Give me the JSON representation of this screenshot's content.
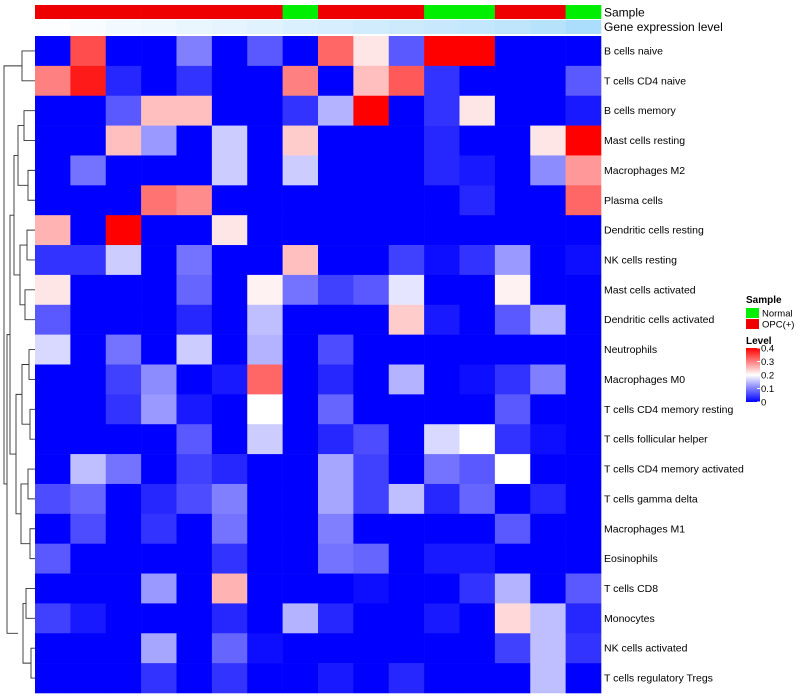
{
  "chart_data": {
    "type": "heatmap",
    "annotation_labels": {
      "sample": "Sample",
      "gene": "Gene expression level"
    },
    "sample_colors": {
      "Normal": "#00ee00",
      "OPC(+)": "#ee0000"
    },
    "column_samples": [
      "OPC(+)",
      "OPC(+)",
      "OPC(+)",
      "OPC(+)",
      "OPC(+)",
      "OPC(+)",
      "OPC(+)",
      "Normal",
      "OPC(+)",
      "OPC(+)",
      "OPC(+)",
      "Normal",
      "Normal",
      "OPC(+)",
      "OPC(+)",
      "Normal"
    ],
    "column_gene_level": [
      0.02,
      0.06,
      0.1,
      0.14,
      0.18,
      0.22,
      0.26,
      0.3,
      0.34,
      0.38,
      0.42,
      0.46,
      0.5,
      0.54,
      0.6,
      0.7
    ],
    "gene_level_colors": {
      "low": "#ffffff",
      "high": "#87cefa"
    },
    "rows": [
      "B cells naive",
      "T cells CD4 naive",
      "B cells memory",
      "Mast cells resting",
      "Macrophages M2",
      "Plasma cells",
      "Dendritic cells resting",
      "NK cells resting",
      "Mast cells activated",
      "Dendritic cells activated",
      "Neutrophils",
      "Macrophages M0",
      "T cells CD4 memory resting",
      "T cells follicular helper",
      "T cells CD4 memory activated",
      "T cells gamma delta",
      "Macrophages M1",
      "Eosinophils",
      "T cells CD8",
      "Monocytes",
      "NK cells activated",
      "T cells regulatory  Tregs"
    ],
    "values": [
      [
        0,
        0.34,
        0,
        0,
        0.1,
        0,
        0.07,
        0,
        0.32,
        0.22,
        0.07,
        0.4,
        0.4,
        0,
        0,
        0
      ],
      [
        0.3,
        0.38,
        0.03,
        0,
        0.04,
        0,
        0,
        0.3,
        0,
        0.25,
        0.33,
        0.04,
        0,
        0,
        0,
        0.07
      ],
      [
        0,
        0,
        0.07,
        0.25,
        0.25,
        0,
        0,
        0.04,
        0.14,
        0.4,
        0,
        0.04,
        0.22,
        0,
        0,
        0.02
      ],
      [
        0,
        0,
        0.25,
        0.12,
        0,
        0.16,
        0,
        0.24,
        0,
        0,
        0,
        0.03,
        0,
        0,
        0.22,
        0.4
      ],
      [
        0,
        0.09,
        0,
        0,
        0,
        0.16,
        0,
        0.16,
        0,
        0,
        0,
        0.03,
        0.02,
        0,
        0.11,
        0.28
      ],
      [
        0,
        0,
        0,
        0.31,
        0.29,
        0,
        0,
        0,
        0,
        0,
        0,
        0,
        0.03,
        0,
        0,
        0.32
      ],
      [
        0.26,
        0,
        0.4,
        0,
        0,
        0.22,
        0,
        0,
        0,
        0,
        0,
        0,
        0,
        0,
        0,
        0
      ],
      [
        0.04,
        0.04,
        0.16,
        0,
        0.09,
        0,
        0,
        0.25,
        0,
        0,
        0.05,
        0.01,
        0.04,
        0.12,
        0,
        0.01
      ],
      [
        0.22,
        0,
        0,
        0,
        0.08,
        0,
        0.21,
        0.09,
        0.05,
        0.07,
        0.18,
        0,
        0,
        0.21,
        0,
        0
      ],
      [
        0.07,
        0,
        0,
        0,
        0.03,
        0,
        0.15,
        0,
        0,
        0,
        0.24,
        0.02,
        0,
        0.07,
        0.14,
        0
      ],
      [
        0.17,
        0,
        0.09,
        0,
        0.16,
        0,
        0.14,
        0,
        0.06,
        0,
        0,
        0,
        0,
        0,
        0,
        0
      ],
      [
        0,
        0,
        0.05,
        0.11,
        0,
        0.02,
        0.32,
        0,
        0.03,
        0,
        0.14,
        0,
        0.01,
        0.04,
        0.1,
        0
      ],
      [
        0,
        0,
        0.04,
        0.12,
        0.02,
        0,
        0.2,
        0,
        0.08,
        0,
        0,
        0,
        0,
        0.07,
        0,
        0
      ],
      [
        0,
        0,
        0,
        0,
        0.07,
        0,
        0.16,
        0,
        0.03,
        0.06,
        0,
        0.17,
        0.2,
        0.04,
        0.01,
        0
      ],
      [
        0,
        0.15,
        0.09,
        0,
        0.05,
        0.03,
        0,
        0,
        0.13,
        0.05,
        0,
        0.09,
        0.07,
        0.2,
        0,
        0
      ],
      [
        0.06,
        0.08,
        0,
        0.03,
        0.06,
        0.1,
        0,
        0,
        0.13,
        0.05,
        0.15,
        0.03,
        0.08,
        0,
        0.03,
        0
      ],
      [
        0,
        0.06,
        0,
        0.04,
        0,
        0.09,
        0,
        0,
        0.1,
        0,
        0,
        0,
        0,
        0.07,
        0,
        0
      ],
      [
        0.07,
        0,
        0,
        0,
        0,
        0.04,
        0,
        0,
        0.09,
        0.08,
        0,
        0.02,
        0.02,
        0,
        0,
        0
      ],
      [
        0,
        0,
        0,
        0.12,
        0,
        0.26,
        0,
        0,
        0,
        0.01,
        0,
        0,
        0.04,
        0.14,
        0,
        0.07
      ],
      [
        0.05,
        0.02,
        0,
        0,
        0,
        0.03,
        0,
        0.14,
        0.03,
        0,
        0,
        0.02,
        0,
        0.23,
        0.15,
        0.03
      ],
      [
        0,
        0,
        0,
        0.13,
        0,
        0.08,
        0.01,
        0,
        0,
        0,
        0,
        0,
        0,
        0.05,
        0.15,
        0.04
      ],
      [
        0,
        0,
        0,
        0.04,
        0,
        0.04,
        0,
        0,
        0.02,
        0,
        0.03,
        0,
        0,
        0,
        0.15,
        0
      ]
    ],
    "value_range": [
      0,
      0.4
    ],
    "colorscale": [
      "#0000ff",
      "#ffffff",
      "#ff0000"
    ],
    "legend": {
      "sample_title": "Sample",
      "sample_entries": [
        "Normal",
        "OPC(+)"
      ],
      "level_title": "Level",
      "level_ticks": [
        "0.4",
        "0.3",
        "0.2",
        "0.1",
        "0"
      ],
      "level_tick_values": [
        0.4,
        0.3,
        0.2,
        0.1,
        0
      ]
    }
  }
}
